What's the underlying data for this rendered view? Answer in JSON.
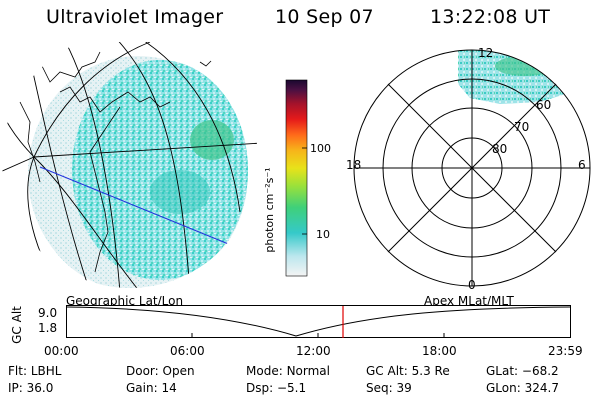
{
  "header": {
    "instrument": "Ultraviolet Imager",
    "date": "10 Sep 07",
    "time": "13:22:08 UT"
  },
  "colorbar": {
    "unit_label": "photon cm⁻²s⁻¹",
    "ticks": [
      "100",
      "10"
    ],
    "scale": "log"
  },
  "polar": {
    "mlt_labels": [
      "12",
      "18",
      "6",
      "0"
    ],
    "lat_labels": [
      "60",
      "70",
      "80"
    ]
  },
  "timeline": {
    "left_title": "Geographic Lat/Lon",
    "right_title": "Apex MLat/MLT",
    "axis_label": "GC Alt",
    "y_labels": [
      "9.0",
      "1.8"
    ],
    "x_labels": [
      "00:00",
      "06:00",
      "12:00",
      "18:00",
      "23:59"
    ],
    "marker_color": "#e00000"
  },
  "status": {
    "row1": [
      {
        "key": "Flt:",
        "val": "LBHL"
      },
      {
        "key": "Door:",
        "val": "Open"
      },
      {
        "key": "Mode:",
        "val": "Normal"
      },
      {
        "key": "GC Alt:",
        "val": "5.3 Re"
      },
      {
        "key": "GLat:",
        "val": "−68.2"
      }
    ],
    "row2": [
      {
        "key": "IP:",
        "val": "36.0"
      },
      {
        "key": "Gain:",
        "val": "14"
      },
      {
        "key": "Dsp:",
        "val": "−5.1"
      },
      {
        "key": "Seq:",
        "val": "39"
      },
      {
        "key": "GLon:",
        "val": "324.7"
      }
    ]
  }
}
